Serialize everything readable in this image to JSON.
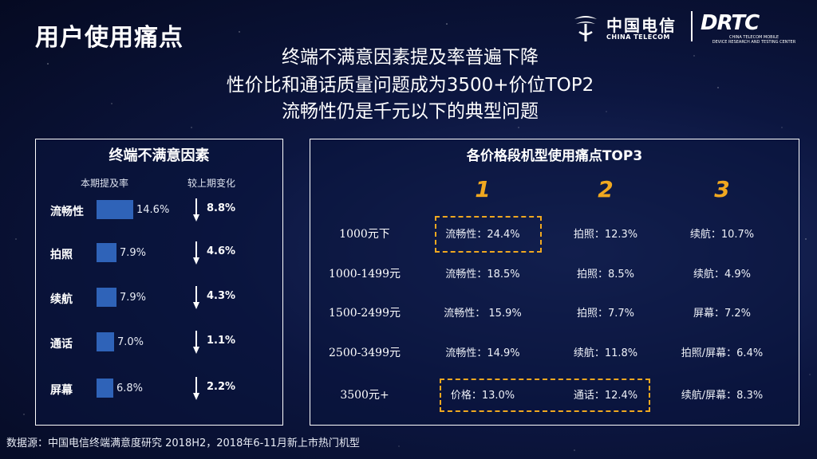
{
  "slide_title": "用户使用痛点",
  "logos": {
    "telecom_cn": "中国电信",
    "telecom_en": "CHINA TELECOM",
    "drtc": "DRTC",
    "drtc_sub1": "CHINA TELECOM MOBILE",
    "drtc_sub2": "DEVICE RESEARCH AND TESTING CENTER"
  },
  "headlines": [
    "终端不满意因素提及率普遍下降",
    "性价比和通话质量问题成为3500+价位TOP2",
    "流畅性仍是千元以下的典型问题"
  ],
  "chart_data": [
    {
      "type": "bar",
      "title": "终端不满意因素",
      "categories": [
        "流畅性",
        "拍照",
        "续航",
        "通话",
        "屏幕"
      ],
      "series": [
        {
          "name": "本期提及率",
          "values": [
            14.6,
            7.9,
            7.9,
            7.0,
            6.8
          ],
          "labels": [
            "14.6%",
            "7.9%",
            "7.9%",
            "7.0%",
            "6.8%"
          ]
        },
        {
          "name": "较上期变化",
          "values": [
            -8.8,
            -4.6,
            -4.3,
            -1.1,
            -2.2
          ],
          "labels": [
            "8.8%",
            "4.6%",
            "4.3%",
            "1.1%",
            "2.2%"
          ]
        }
      ],
      "bar_color": "#2f63b8"
    },
    {
      "type": "table",
      "title": "各价格段机型使用痛点TOP3",
      "columns": [
        "1",
        "2",
        "3"
      ],
      "rows": [
        {
          "price": "1000元下",
          "cells": [
            "流畅性：24.4%",
            "拍照：12.3%",
            "续航：10.7%"
          ]
        },
        {
          "price": "1000-1499元",
          "cells": [
            "流畅性：18.5%",
            "拍照：8.5%",
            "续航：4.9%"
          ]
        },
        {
          "price": "1500-2499元",
          "cells": [
            "流畅性： 15.9%",
            "拍照：7.7%",
            "屏幕：7.2%"
          ]
        },
        {
          "price": "2500-3499元",
          "cells": [
            "流畅性：14.9%",
            "续航：11.8%",
            "拍照/屏幕：6.4%"
          ]
        },
        {
          "price": "3500元+",
          "cells": [
            "价格：13.0%",
            "通话：12.4%",
            "续航/屏幕：8.3%"
          ]
        }
      ],
      "highlight_color": "#f0a820"
    }
  ],
  "source": "数据源：中国电信终端满意度研究 2018H2，2018年6-11月新上市热门机型"
}
